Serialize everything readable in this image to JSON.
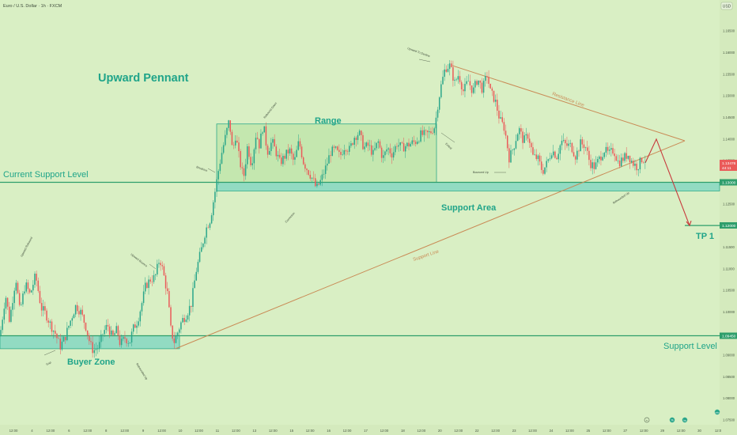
{
  "header": {
    "symbol_title": "Euro / U.S. Dollar · 1h · FXCM"
  },
  "currency_badge": "USD",
  "price_axis": {
    "ticks": [
      "1.16500",
      "1.16000",
      "1.15500",
      "1.15000",
      "1.14500",
      "1.14000",
      "1.13500",
      "1.13000",
      "1.12500",
      "1.12000",
      "1.11500",
      "1.11000",
      "1.10500",
      "1.10000",
      "1.09500",
      "1.09000",
      "1.08500",
      "1.08000",
      "1.07500"
    ],
    "tick_values": [
      1.165,
      1.16,
      1.155,
      1.15,
      1.145,
      1.14,
      1.135,
      1.13,
      1.125,
      1.12,
      1.115,
      1.11,
      1.105,
      1.1,
      1.095,
      1.09,
      1.085,
      1.08,
      1.075
    ],
    "current_price_label": "1.13476",
    "countdown_label": "44:11",
    "current_support_label": "1.13000",
    "support_level_label": "1.09450",
    "tp_label": "1.12000"
  },
  "time_axis": {
    "labels": [
      "12:00",
      "4",
      "12:00",
      "6",
      "12:00",
      "8",
      "12:00",
      "9",
      "12:00",
      "10",
      "12:00",
      "11",
      "12:00",
      "13",
      "12:00",
      "15",
      "12:00",
      "16",
      "12:00",
      "17",
      "12:00",
      "18",
      "12:00",
      "20",
      "12:00",
      "22",
      "12:00",
      "23",
      "12:00",
      "24",
      "12:00",
      "25",
      "12:00",
      "27",
      "12:00",
      "29",
      "12:00",
      "30",
      "12:0"
    ]
  },
  "annotations": {
    "upward_pennant": "Upward Pennant",
    "range": "Range",
    "current_support_level": "Current Support Level",
    "support_area": "Support Area",
    "buyer_zone": "Buyer Zone",
    "support_level": "Support Level",
    "tp1": "TP 1",
    "resistance_line": "Resistance Line",
    "support_line": "Support Line",
    "small": {
      "upward_to_decline": "Upward To Decline",
      "rebound_down": "Rebound Down",
      "breakout": "Breakout",
      "exited": "Exited",
      "correction": "Correction",
      "bounced_up": "Bounced Up",
      "rebounded_up_right": "Rebounded Up",
      "upward_rebound": "Upward Rebound",
      "gap": "Gap",
      "rebounded_up_left": "Rebounded Up",
      "upward_bounce": "Upward Bounce"
    }
  },
  "toolbar": {
    "settings_icon": "gear-icon",
    "percent_label": "%",
    "log_label": "log",
    "auto_label": "auto"
  },
  "colors": {
    "background": "#d9efc4",
    "zone_fill": "#7fd6c2",
    "zone_border": "#2faa8a",
    "support_line": "#2e9e6b",
    "annotation_text": "#1fa489",
    "trendline": "#c98a55",
    "projection": "#c8383b",
    "candle_up": "#2aa68a",
    "candle_down": "#ea5a59",
    "price_badge": "#ea5a59",
    "support_badge": "#2e9e6b"
  },
  "chart_data": {
    "type": "candlestick",
    "title": "Euro / U.S. Dollar · 1h · FXCM",
    "y_range": [
      1.073,
      1.171
    ],
    "current_price": 1.13476,
    "support_area": [
      1.128,
      1.13
    ],
    "buyer_zone": [
      1.0915,
      1.0945
    ],
    "range_box": [
      1.13,
      1.1435
    ],
    "levels": [
      {
        "name": "Current Support Level",
        "value": 1.13
      },
      {
        "name": "Support Level",
        "value": 1.0945
      },
      {
        "name": "TP 1",
        "value": 1.12
      }
    ],
    "trendlines": [
      {
        "name": "Support Line",
        "from_price": 1.0915,
        "to_price": 1.1396
      },
      {
        "name": "Resistance Line",
        "from_price": 1.157,
        "to_price": 1.1396
      }
    ],
    "projection": [
      1.1345,
      1.14,
      1.12
    ],
    "path": [
      [
        0,
        1.0945
      ],
      [
        7,
        1.104
      ],
      [
        12,
        1.098
      ],
      [
        20,
        1.108
      ],
      [
        25,
        1.1
      ],
      [
        32,
        1.1065
      ],
      [
        38,
        1.104
      ],
      [
        45,
        1.1085
      ],
      [
        52,
        1.101
      ],
      [
        58,
        1.0995
      ],
      [
        64,
        1.097
      ],
      [
        70,
        1.095
      ],
      [
        76,
        1.092
      ],
      [
        82,
        1.094
      ],
      [
        90,
        1.0985
      ],
      [
        96,
        1.1015
      ],
      [
        102,
        1.1
      ],
      [
        108,
        1.097
      ],
      [
        114,
        1.0925
      ],
      [
        118,
        1.091
      ],
      [
        125,
        1.092
      ],
      [
        130,
        1.095
      ],
      [
        136,
        1.097
      ],
      [
        142,
        1.094
      ],
      [
        148,
        1.096
      ],
      [
        152,
        1.0925
      ],
      [
        158,
        1.094
      ],
      [
        164,
        1.093
      ],
      [
        168,
        1.096
      ],
      [
        174,
        1.098
      ],
      [
        180,
        1.1025
      ],
      [
        184,
        1.106
      ],
      [
        190,
        1.1075
      ],
      [
        196,
        1.108
      ],
      [
        202,
        1.1125
      ],
      [
        206,
        1.1095
      ],
      [
        212,
        1.104
      ],
      [
        216,
        1.096
      ],
      [
        220,
        1.093
      ],
      [
        224,
        1.095
      ],
      [
        230,
        1.098
      ],
      [
        236,
        1.0995
      ],
      [
        242,
        1.102
      ],
      [
        248,
        1.1095
      ],
      [
        254,
        1.114
      ],
      [
        260,
        1.119
      ],
      [
        266,
        1.1215
      ],
      [
        272,
        1.128
      ],
      [
        276,
        1.1325
      ],
      [
        280,
        1.1365
      ],
      [
        285,
        1.1405
      ],
      [
        290,
        1.1445
      ],
      [
        294,
        1.137
      ],
      [
        298,
        1.141
      ],
      [
        303,
        1.135
      ],
      [
        308,
        1.131
      ],
      [
        313,
        1.1385
      ],
      [
        318,
        1.134
      ],
      [
        324,
        1.1415
      ],
      [
        328,
        1.1385
      ],
      [
        333,
        1.1435
      ],
      [
        338,
        1.137
      ],
      [
        344,
        1.1395
      ],
      [
        349,
        1.137
      ],
      [
        354,
        1.1345
      ],
      [
        360,
        1.136
      ],
      [
        366,
        1.1375
      ],
      [
        372,
        1.1345
      ],
      [
        378,
        1.1395
      ],
      [
        384,
        1.1345
      ],
      [
        390,
        1.1325
      ],
      [
        396,
        1.1305
      ],
      [
        400,
        1.1285
      ],
      [
        406,
        1.1305
      ],
      [
        412,
        1.1335
      ],
      [
        418,
        1.137
      ],
      [
        424,
        1.1375
      ],
      [
        430,
        1.136
      ],
      [
        436,
        1.1385
      ],
      [
        442,
        1.1375
      ],
      [
        448,
        1.1405
      ],
      [
        454,
        1.1415
      ],
      [
        460,
        1.138
      ],
      [
        466,
        1.1385
      ],
      [
        472,
        1.1365
      ],
      [
        478,
        1.1395
      ],
      [
        484,
        1.1355
      ],
      [
        490,
        1.138
      ],
      [
        496,
        1.1365
      ],
      [
        502,
        1.139
      ],
      [
        508,
        1.138
      ],
      [
        514,
        1.1385
      ],
      [
        520,
        1.139
      ],
      [
        526,
        1.1395
      ],
      [
        532,
        1.141
      ],
      [
        538,
        1.141
      ],
      [
        544,
        1.1415
      ],
      [
        550,
        1.143
      ],
      [
        554,
        1.1485
      ],
      [
        558,
        1.1525
      ],
      [
        563,
        1.1565
      ],
      [
        569,
        1.157
      ],
      [
        575,
        1.153
      ],
      [
        580,
        1.155
      ],
      [
        586,
        1.151
      ],
      [
        592,
        1.1535
      ],
      [
        598,
        1.151
      ],
      [
        604,
        1.154
      ],
      [
        610,
        1.1515
      ],
      [
        616,
        1.155
      ],
      [
        620,
        1.151
      ],
      [
        626,
        1.149
      ],
      [
        632,
        1.1445
      ],
      [
        638,
        1.1425
      ],
      [
        644,
        1.1355
      ],
      [
        650,
        1.1385
      ],
      [
        656,
        1.1425
      ],
      [
        662,
        1.1395
      ],
      [
        668,
        1.141
      ],
      [
        674,
        1.136
      ],
      [
        680,
        1.1355
      ],
      [
        686,
        1.1325
      ],
      [
        692,
        1.1345
      ],
      [
        698,
        1.1375
      ],
      [
        704,
        1.136
      ],
      [
        710,
        1.1395
      ],
      [
        716,
        1.1385
      ],
      [
        722,
        1.1385
      ],
      [
        728,
        1.136
      ],
      [
        734,
        1.139
      ],
      [
        740,
        1.1385
      ],
      [
        746,
        1.1345
      ],
      [
        752,
        1.1335
      ],
      [
        758,
        1.1355
      ],
      [
        764,
        1.1375
      ],
      [
        770,
        1.1365
      ],
      [
        776,
        1.1375
      ],
      [
        782,
        1.1345
      ],
      [
        788,
        1.1355
      ],
      [
        794,
        1.1365
      ],
      [
        800,
        1.1345
      ],
      [
        806,
        1.1335
      ],
      [
        812,
        1.1355
      ],
      [
        818,
        1.135
      ]
    ]
  }
}
